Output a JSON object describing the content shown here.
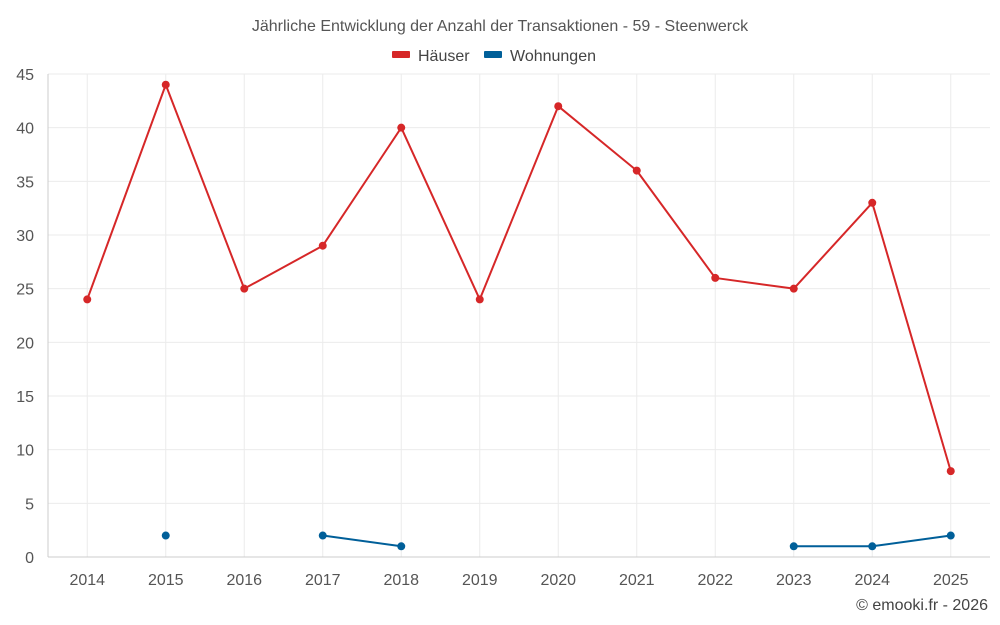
{
  "chart_data": {
    "type": "line",
    "title": "Jährliche Entwicklung der Anzahl der Transaktionen - 59 - Steenwerck",
    "categories": [
      "2014",
      "2015",
      "2016",
      "2017",
      "2018",
      "2019",
      "2020",
      "2021",
      "2022",
      "2023",
      "2024",
      "2025"
    ],
    "series": [
      {
        "name": "Häuser",
        "color": "#d62728",
        "values": [
          24,
          44,
          25,
          29,
          40,
          24,
          42,
          36,
          26,
          25,
          33,
          8
        ]
      },
      {
        "name": "Wohnungen",
        "color": "#005f99",
        "values": [
          null,
          2,
          null,
          2,
          1,
          null,
          null,
          null,
          null,
          1,
          1,
          2
        ]
      }
    ],
    "ylim": [
      0,
      45
    ],
    "yticks": [
      0,
      5,
      10,
      15,
      20,
      25,
      30,
      35,
      40,
      45
    ],
    "grid": true,
    "legend_position": "top-center",
    "xlabel": "",
    "ylabel": ""
  },
  "credit": "© emooki.fr - 2026"
}
